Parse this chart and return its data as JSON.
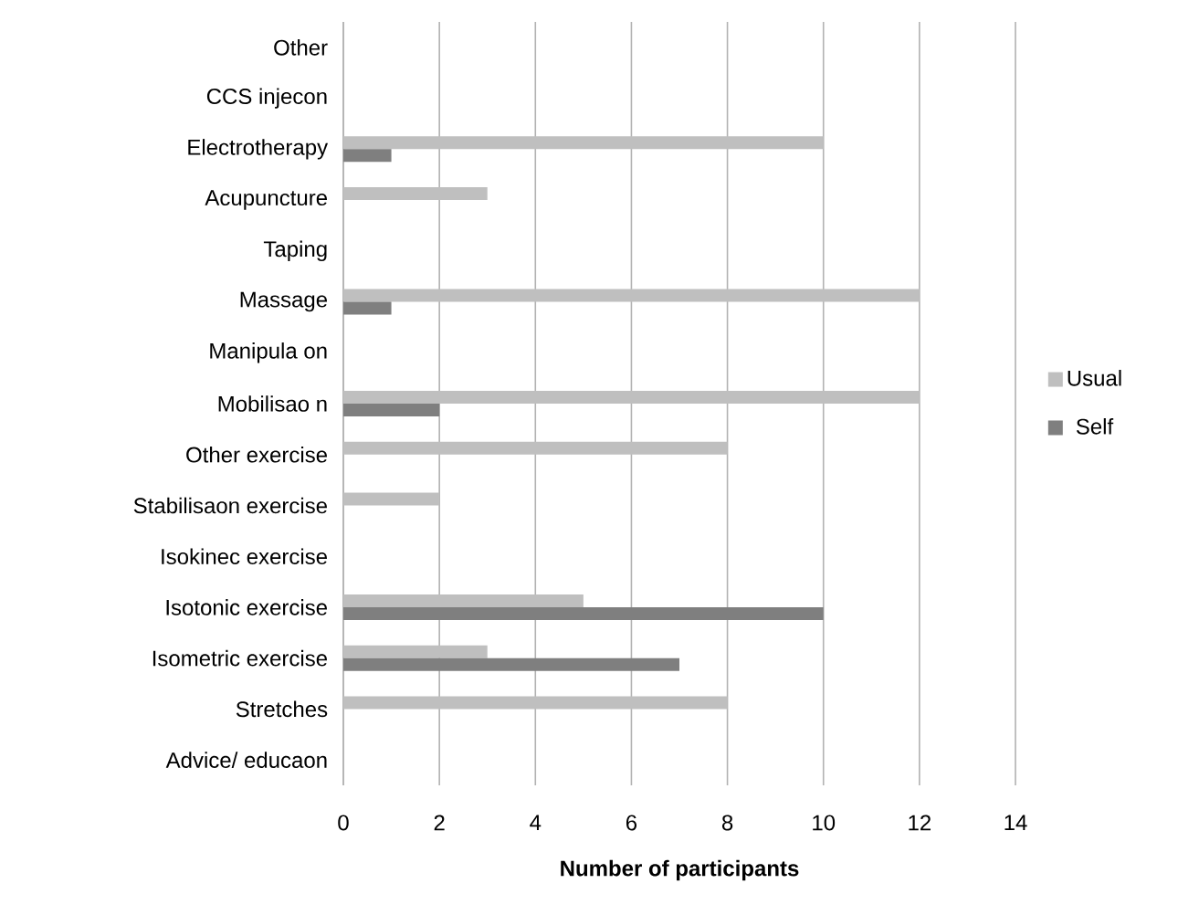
{
  "chart_data": {
    "type": "bar",
    "orientation": "horizontal",
    "xlabel": "Number of participants",
    "categories": [
      "Other",
      "CCS injecon",
      "Electrotherapy",
      "Acupuncture",
      "Taping",
      "Massage",
      "Manipula on",
      "Mobilisao n",
      "Other exercise",
      "Stabilisaon exercise",
      "Isokinec exercise",
      "Isotonic exercise",
      "Isometric exercise",
      "Stretches",
      "Advice/ educaon"
    ],
    "series": [
      {
        "name": "Usual",
        "color": "#bfbfbf",
        "values": [
          0,
          0,
          10,
          3,
          0,
          12,
          0,
          12,
          8,
          2,
          0,
          5,
          3,
          8,
          0
        ]
      },
      {
        "name": "Self",
        "color": "#7f7f7f",
        "values": [
          0,
          0,
          1,
          0,
          0,
          1,
          0,
          2,
          0,
          0,
          0,
          10,
          7,
          0,
          0
        ]
      }
    ],
    "xlim": [
      0,
      14
    ],
    "xticks": [
      0,
      2,
      4,
      6,
      8,
      10,
      12,
      14
    ],
    "grid": "x",
    "legend": "right"
  }
}
